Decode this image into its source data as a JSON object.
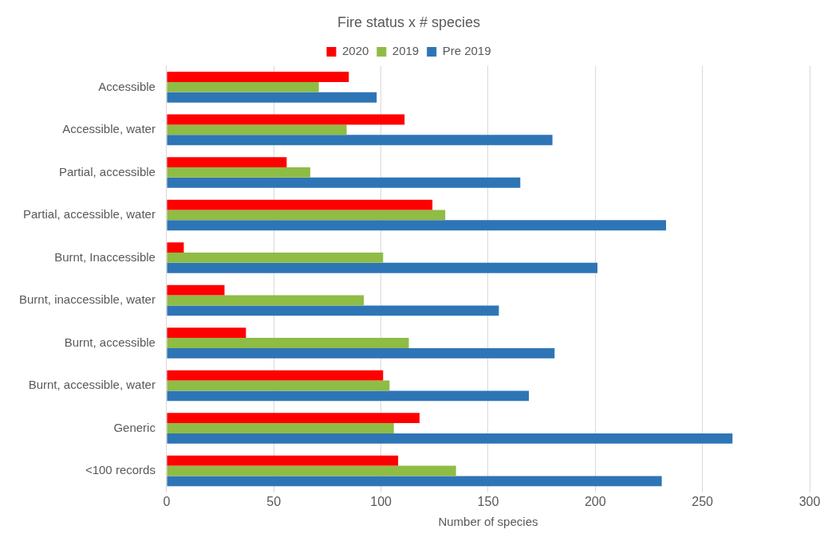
{
  "chart_data": {
    "type": "bar",
    "orientation": "horizontal",
    "title": "Fire status x # species",
    "xlabel": "Number of species",
    "categories": [
      "Accessible",
      "Accessible, water",
      "Partial, accessible",
      "Partial, accessible, water",
      "Burnt, Inaccessible",
      "Burnt, inaccessible, water",
      "Burnt, accessible",
      "Burnt, accessible, water",
      "Generic",
      "<100 records"
    ],
    "series": [
      {
        "name": "2020",
        "color": "#ff0000",
        "values": [
          85,
          111,
          56,
          124,
          8,
          27,
          37,
          101,
          118,
          108
        ]
      },
      {
        "name": "2019",
        "color": "#8fbc45",
        "values": [
          71,
          84,
          67,
          130,
          101,
          92,
          113,
          104,
          106,
          135
        ]
      },
      {
        "name": "Pre 2019",
        "color": "#2e75b6",
        "values": [
          98,
          180,
          165,
          233,
          201,
          155,
          181,
          169,
          264,
          231
        ]
      }
    ],
    "xlim": [
      0,
      300
    ],
    "xticks": [
      0,
      50,
      100,
      150,
      200,
      250,
      300
    ],
    "grid": "x",
    "legend": "top"
  }
}
